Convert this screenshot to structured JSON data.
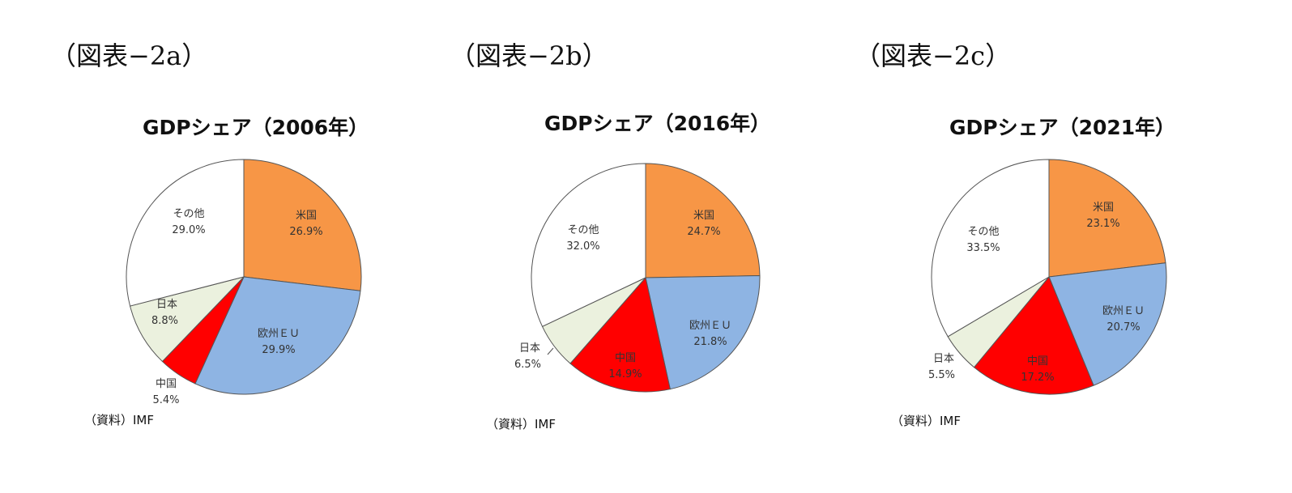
{
  "chart_data": [
    {
      "figure_label": "（図表−2a）",
      "type": "pie",
      "title": "GDPシェア（2006年）",
      "source": "（資料）IMF",
      "slices": [
        {
          "name": "米国",
          "value": 26.9,
          "value_label": "26.9%",
          "color": "#F79646"
        },
        {
          "name": "欧州ＥＵ",
          "value": 29.9,
          "value_label": "29.9%",
          "color": "#8EB4E3"
        },
        {
          "name": "中国",
          "value": 5.4,
          "value_label": "5.4%",
          "color": "#FF0000"
        },
        {
          "name": "日本",
          "value": 8.8,
          "value_label": "8.8%",
          "color": "#EBF1DE"
        },
        {
          "name": "その他",
          "value": 29.0,
          "value_label": "29.0%",
          "color": "#FFFFFF"
        }
      ]
    },
    {
      "figure_label": "（図表−2b）",
      "type": "pie",
      "title": "GDPシェア（2016年）",
      "source": "（資料）IMF",
      "slices": [
        {
          "name": "米国",
          "value": 24.7,
          "value_label": "24.7%",
          "color": "#F79646"
        },
        {
          "name": "欧州ＥＵ",
          "value": 21.8,
          "value_label": "21.8%",
          "color": "#8EB4E3"
        },
        {
          "name": "中国",
          "value": 14.9,
          "value_label": "14.9%",
          "color": "#FF0000"
        },
        {
          "name": "日本",
          "value": 6.5,
          "value_label": "6.5%",
          "color": "#EBF1DE"
        },
        {
          "name": "その他",
          "value": 32.0,
          "value_label": "32.0%",
          "color": "#FFFFFF"
        }
      ]
    },
    {
      "figure_label": "（図表−2c）",
      "type": "pie",
      "title": "GDPシェア（2021年）",
      "source": "（資料）IMF",
      "slices": [
        {
          "name": "米国",
          "value": 23.1,
          "value_label": "23.1%",
          "color": "#F79646"
        },
        {
          "name": "欧州ＥＵ",
          "value": 20.7,
          "value_label": "20.7%",
          "color": "#8EB4E3"
        },
        {
          "name": "中国",
          "value": 17.2,
          "value_label": "17.2%",
          "color": "#FF0000"
        },
        {
          "name": "日本",
          "value": 5.5,
          "value_label": "5.5%",
          "color": "#EBF1DE"
        },
        {
          "name": "その他",
          "value": 33.5,
          "value_label": "33.5%",
          "color": "#FFFFFF"
        }
      ]
    }
  ]
}
